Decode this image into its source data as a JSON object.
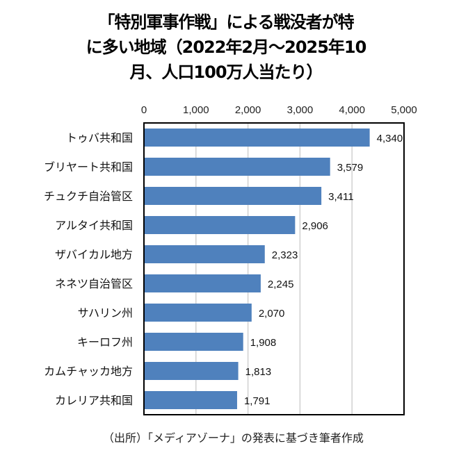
{
  "chart_data": {
    "type": "bar",
    "orientation": "horizontal",
    "title_lines": [
      "「特別軍事作戦」による戦没者が特",
      "に多い地域（2022年2月～2025年10",
      "月、人口100万人当たり）"
    ],
    "categories": [
      "トゥバ共和国",
      "ブリヤート共和国",
      "チュクチ自治管区",
      "アルタイ共和国",
      "ザバイカル地方",
      "ネネツ自治管区",
      "サハリン州",
      "キーロフ州",
      "カムチャッカ地方",
      "カレリア共和国"
    ],
    "values": [
      4340,
      3579,
      3411,
      2906,
      2323,
      2245,
      2070,
      1908,
      1813,
      1791
    ],
    "value_labels": [
      "4,340",
      "3,579",
      "3,411",
      "2,906",
      "2,323",
      "2,245",
      "2,070",
      "1,908",
      "1,813",
      "1,791"
    ],
    "xlim": [
      0,
      5000
    ],
    "x_ticks": [
      0,
      1000,
      2000,
      3000,
      4000,
      5000
    ],
    "x_tick_labels": [
      "0",
      "1,000",
      "2,000",
      "3,000",
      "4,000",
      "5,000"
    ],
    "x_axis_position": "top",
    "grid": true,
    "bar_color": "#4F81BD",
    "xlabel": "",
    "ylabel": ""
  },
  "source": "（出所）「メディアゾーナ」の発表に基づき筆者作成"
}
